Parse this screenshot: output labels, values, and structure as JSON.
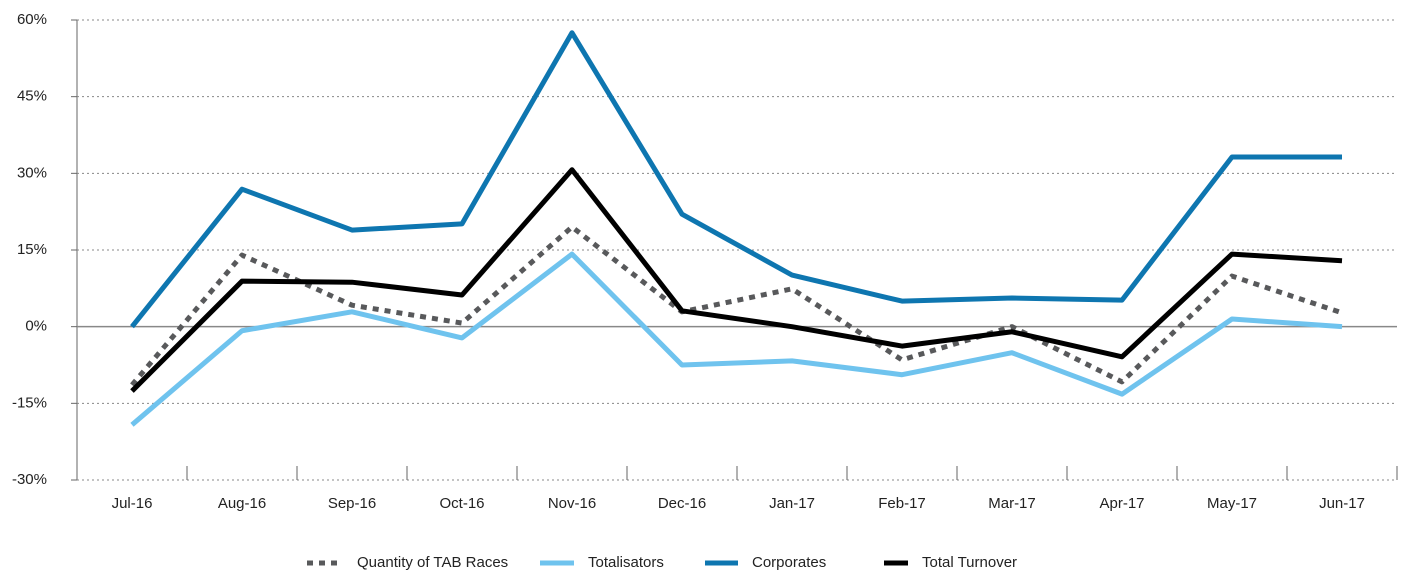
{
  "chart_data": {
    "type": "line",
    "categories": [
      "Jul-16",
      "Aug-16",
      "Sep-16",
      "Oct-16",
      "Nov-16",
      "Dec-16",
      "Jan-17",
      "Feb-17",
      "Mar-17",
      "Apr-17",
      "May-17",
      "Jun-17"
    ],
    "series": [
      {
        "name": "Quantity of TAB Races",
        "color": "#58595b",
        "style": "dotted",
        "values": [
          -11.4,
          14,
          4.2,
          0.7,
          19.5,
          2.9,
          7.4,
          -6.5,
          0,
          -10.8,
          9.9,
          2.7
        ]
      },
      {
        "name": "Totalisators",
        "color": "#6fc3ee",
        "style": "solid",
        "values": [
          -19.2,
          -0.8,
          2.9,
          -2.2,
          14.2,
          -7.5,
          -6.7,
          -9.4,
          -5.1,
          -13.2,
          1.5,
          0
        ]
      },
      {
        "name": "Corporates",
        "color": "#0e76b0",
        "style": "solid",
        "values": [
          0,
          26.9,
          18.9,
          20.1,
          57.5,
          22,
          10.1,
          5,
          5.6,
          5.2,
          33.2,
          33.2
        ]
      },
      {
        "name": "Total Turnover",
        "color": "#000000",
        "style": "solid",
        "values": [
          -12.6,
          8.9,
          8.7,
          6.2,
          30.7,
          3.1,
          0,
          -3.8,
          -1,
          -5.9,
          14.2,
          12.9
        ]
      }
    ],
    "ylim": [
      -30,
      60
    ],
    "yticks": [
      {
        "value": -30,
        "label": "-30%"
      },
      {
        "value": -15,
        "label": "-15%"
      },
      {
        "value": 0,
        "label": "0%"
      },
      {
        "value": 15,
        "label": "15%"
      },
      {
        "value": 30,
        "label": "30%"
      },
      {
        "value": 45,
        "label": "45%"
      },
      {
        "value": 60,
        "label": "60%"
      }
    ],
    "grid": true,
    "legend": "bottom"
  }
}
